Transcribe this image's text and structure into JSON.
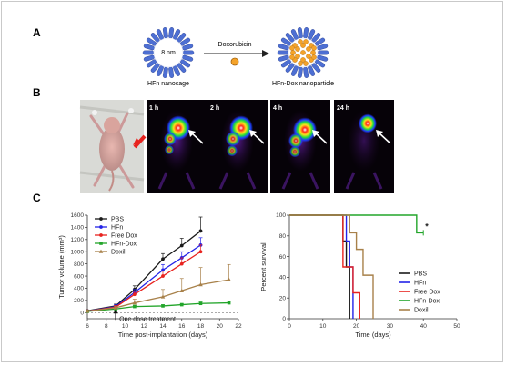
{
  "panel_labels": {
    "a": "A",
    "b": "B",
    "c": "C"
  },
  "panel_a": {
    "cage_size": "8 nm",
    "cage_label": "HFn nanocage",
    "arrow_label": "Doxorubicin",
    "product_label": "HFn-Dox nanoparticle",
    "colors": {
      "cage_blue": "#4d6fd3",
      "dox_orange": "#f4a32a"
    }
  },
  "panel_b": {
    "time_labels": [
      "1 h",
      "2 h",
      "4 h",
      "24 h"
    ]
  },
  "chart_data": [
    {
      "type": "line",
      "ylabel": "Tumor volume (mm³)",
      "xlabel": "Time post-implantation (days)",
      "xlim": [
        6,
        22
      ],
      "ylim": [
        -100,
        1600
      ],
      "xticks": [
        6,
        8,
        10,
        12,
        14,
        16,
        18,
        20,
        22
      ],
      "yticks": [
        0,
        200,
        400,
        600,
        800,
        1000,
        1200,
        1400,
        1600
      ],
      "annotation": "One dose treatment",
      "annotation_x": 9,
      "baseline_y": 0,
      "legend_position": "top-left",
      "series": [
        {
          "name": "PBS",
          "color": "#1a1a1a",
          "x": [
            6,
            9,
            11,
            14,
            16,
            18
          ],
          "y": [
            30,
            110,
            380,
            880,
            1100,
            1340
          ],
          "err": [
            10,
            30,
            60,
            90,
            120,
            230
          ]
        },
        {
          "name": "HFn",
          "color": "#2323e8",
          "x": [
            6,
            9,
            11,
            14,
            16,
            18
          ],
          "y": [
            25,
            100,
            330,
            700,
            900,
            1110
          ],
          "err": [
            10,
            30,
            50,
            90,
            100,
            120
          ]
        },
        {
          "name": "Free Dox",
          "color": "#e8231f",
          "x": [
            6,
            9,
            11,
            14,
            16,
            18
          ],
          "y": [
            25,
            90,
            300,
            600,
            800,
            1000
          ],
          "err": [
            10,
            25,
            50,
            80,
            100,
            110
          ]
        },
        {
          "name": "HFn-Dox",
          "color": "#22a52a",
          "x": [
            6,
            9,
            11,
            14,
            16,
            18,
            21
          ],
          "y": [
            20,
            60,
            100,
            110,
            130,
            150,
            160
          ],
          "err": [
            5,
            15,
            20,
            20,
            20,
            25,
            25
          ]
        },
        {
          "name": "Doxil",
          "color": "#a8814a",
          "x": [
            6,
            9,
            11,
            14,
            16,
            18,
            21
          ],
          "y": [
            25,
            80,
            160,
            260,
            360,
            460,
            540
          ],
          "err": [
            10,
            20,
            60,
            120,
            200,
            280,
            250
          ]
        }
      ]
    },
    {
      "type": "line",
      "ylabel": "Percent survival",
      "xlabel": "Time  (days)",
      "xlim": [
        0,
        50
      ],
      "ylim": [
        0,
        100
      ],
      "xticks": [
        0,
        10,
        20,
        30,
        40,
        50
      ],
      "yticks": [
        0,
        20,
        40,
        60,
        80,
        100
      ],
      "annotation": "*",
      "legend_position": "bottom-right",
      "series": [
        {
          "name": "PBS",
          "color": "#1a1a1a",
          "steps": [
            [
              0,
              100
            ],
            [
              16,
              100
            ],
            [
              16,
              75
            ],
            [
              17,
              75
            ],
            [
              17,
              50
            ],
            [
              18,
              50
            ],
            [
              18,
              0
            ]
          ]
        },
        {
          "name": "HFn",
          "color": "#2323e8",
          "steps": [
            [
              0,
              100
            ],
            [
              17,
              100
            ],
            [
              17,
              75
            ],
            [
              18,
              75
            ],
            [
              18,
              50
            ],
            [
              19,
              50
            ],
            [
              19,
              0
            ]
          ]
        },
        {
          "name": "Free Dox",
          "color": "#e8231f",
          "steps": [
            [
              0,
              100
            ],
            [
              16,
              100
            ],
            [
              16,
              50
            ],
            [
              19,
              50
            ],
            [
              19,
              25
            ],
            [
              21,
              25
            ],
            [
              21,
              0
            ]
          ]
        },
        {
          "name": "HFn-Dox",
          "color": "#22a52a",
          "steps": [
            [
              0,
              100
            ],
            [
              38,
              100
            ],
            [
              38,
              83
            ],
            [
              40,
              83
            ]
          ]
        },
        {
          "name": "Doxil",
          "color": "#a8814a",
          "steps": [
            [
              0,
              100
            ],
            [
              18,
              100
            ],
            [
              18,
              83
            ],
            [
              20,
              83
            ],
            [
              20,
              67
            ],
            [
              22,
              67
            ],
            [
              22,
              42
            ],
            [
              25,
              42
            ],
            [
              25,
              0
            ]
          ]
        }
      ]
    }
  ]
}
